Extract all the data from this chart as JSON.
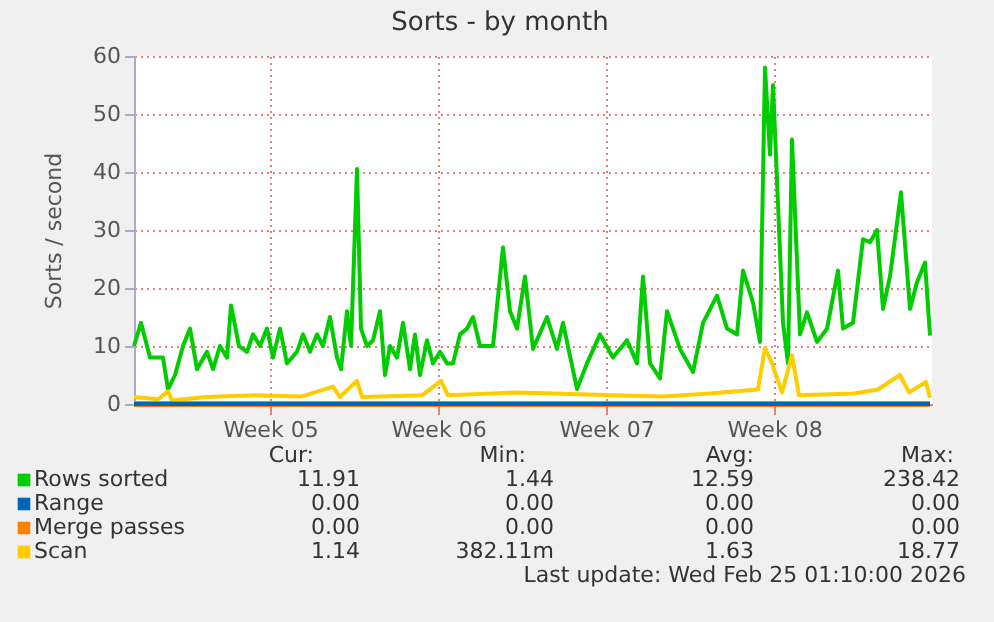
{
  "chart_data": {
    "type": "line",
    "title": "Sorts - by month",
    "ylabel": "Sorts / second",
    "xlim": [
      "2026-01-23T20:00",
      "2026-02-26T02:00"
    ],
    "xticks": [
      {
        "value": "2026-01-29T12:00",
        "label": "Week 05"
      },
      {
        "value": "2026-02-05T12:00",
        "label": "Week 06"
      },
      {
        "value": "2026-02-12T12:00",
        "label": "Week 07"
      },
      {
        "value": "2026-02-19T12:00",
        "label": "Week 08"
      }
    ],
    "ylim": [
      0,
      60
    ],
    "yticks": [
      0,
      10,
      20,
      30,
      40,
      50,
      60
    ],
    "grid": true,
    "legend": "bottom",
    "series": [
      {
        "name": "Rows sorted",
        "color": "#00cc00",
        "x": [
          "2026-01-23T20:00",
          "2026-01-24T03:00",
          "2026-01-24T12:00",
          "2026-01-25T01:00",
          "2026-01-25T06:00",
          "2026-01-25T13:00",
          "2026-01-25T21:00",
          "2026-01-26T04:00",
          "2026-01-26T11:00",
          "2026-01-26T21:00",
          "2026-01-27T03:00",
          "2026-01-27T10:00",
          "2026-01-27T17:00",
          "2026-01-27T21:00",
          "2026-01-28T05:00",
          "2026-01-28T13:00",
          "2026-01-28T19:00",
          "2026-01-29T02:00",
          "2026-01-29T09:00",
          "2026-01-29T15:00",
          "2026-01-29T22:00",
          "2026-01-30T05:00",
          "2026-01-30T15:00",
          "2026-01-30T21:00",
          "2026-01-31T04:00",
          "2026-01-31T11:00",
          "2026-01-31T17:00",
          "2026-02-01T00:00",
          "2026-02-01T07:00",
          "2026-02-01T11:00",
          "2026-02-01T17:00",
          "2026-02-01T21:00",
          "2026-02-02T03:00",
          "2026-02-02T07:00",
          "2026-02-02T13:00",
          "2026-02-02T19:00",
          "2026-02-03T02:00",
          "2026-02-03T07:00",
          "2026-02-03T12:00",
          "2026-02-03T19:00",
          "2026-02-04T01:00",
          "2026-02-04T08:00",
          "2026-02-04T13:00",
          "2026-02-04T18:00",
          "2026-02-05T01:00",
          "2026-02-05T07:00",
          "2026-02-05T14:00",
          "2026-02-05T21:00",
          "2026-02-06T03:00",
          "2026-02-06T10:00",
          "2026-02-06T17:00",
          "2026-02-06T23:00",
          "2026-02-07T06:00",
          "2026-02-07T19:00",
          "2026-02-08T05:00",
          "2026-02-08T12:00",
          "2026-02-08T19:00",
          "2026-02-09T03:00",
          "2026-02-09T11:00",
          "2026-02-10T01:00",
          "2026-02-10T11:00",
          "2026-02-10T17:00",
          "2026-02-11T07:00",
          "2026-02-11T17:00",
          "2026-02-12T06:00",
          "2026-02-12T19:00",
          "2026-02-13T09:00",
          "2026-02-13T19:00",
          "2026-02-14T01:00",
          "2026-02-14T08:00",
          "2026-02-14T18:00",
          "2026-02-15T01:00",
          "2026-02-15T14:00",
          "2026-02-16T03:00",
          "2026-02-16T13:00",
          "2026-02-17T03:00",
          "2026-02-17T13:00",
          "2026-02-17T23:00",
          "2026-02-18T05:00",
          "2026-02-18T15:00",
          "2026-02-18T22:00",
          "2026-02-19T03:00",
          "2026-02-19T08:00",
          "2026-02-19T11:00",
          "2026-02-19T21:00",
          "2026-02-20T02:00",
          "2026-02-20T06:00",
          "2026-02-20T14:00",
          "2026-02-20T21:00",
          "2026-02-21T07:00",
          "2026-02-21T17:00",
          "2026-02-22T04:00",
          "2026-02-22T09:00",
          "2026-02-22T19:00",
          "2026-02-23T05:00",
          "2026-02-23T12:00",
          "2026-02-23T19:00",
          "2026-02-24T01:00",
          "2026-02-24T08:00",
          "2026-02-24T19:00",
          "2026-02-25T04:00",
          "2026-02-25T11:00",
          "2026-02-25T19:00",
          "2026-02-26T00:00"
        ],
        "values": [
          10,
          14,
          8,
          8,
          2.5,
          5,
          10,
          13,
          6,
          9,
          6,
          10,
          8,
          17,
          10,
          9,
          12,
          10,
          13,
          8,
          13,
          7,
          9,
          12,
          9,
          12,
          10,
          15,
          8,
          6,
          16,
          10,
          40.5,
          13,
          10,
          11,
          16,
          5,
          10,
          8,
          14,
          6,
          12,
          5,
          11,
          7,
          9,
          7,
          7,
          12,
          13,
          15,
          10,
          10,
          27,
          16,
          13,
          22,
          9.5,
          15,
          9.5,
          14,
          2.6,
          7,
          12,
          8,
          11,
          7,
          22,
          7,
          4.4,
          16,
          9.5,
          5.5,
          14,
          18.7,
          13,
          12,
          23,
          17.5,
          10.7,
          58,
          43,
          55,
          14,
          7,
          45.6,
          12,
          15.8,
          10.7,
          13,
          23,
          13,
          14,
          28.4,
          27.9,
          30,
          16.4,
          22,
          36.5,
          16.4,
          21,
          24.4,
          11.8
        ]
      },
      {
        "name": "Range",
        "color": "#0066b3",
        "x": [
          "2026-01-23T20:00",
          "2026-02-26T00:00"
        ],
        "values": [
          0,
          0
        ]
      },
      {
        "name": "Merge passes",
        "color": "#ff8000",
        "x": [
          "2026-01-23T20:00",
          "2026-02-26T00:00"
        ],
        "values": [
          0,
          0
        ]
      },
      {
        "name": "Scan",
        "color": "#ffcc00",
        "x": [
          "2026-01-23T20:00",
          "2026-01-24T20:00",
          "2026-01-25T06:00",
          "2026-01-25T10:00",
          "2026-01-26T20:00",
          "2026-01-28T20:00",
          "2026-01-30T20:00",
          "2026-02-01T03:00",
          "2026-02-01T10:00",
          "2026-02-02T03:00",
          "2026-02-02T08:00",
          "2026-02-04T20:00",
          "2026-02-05T15:00",
          "2026-02-05T22:00",
          "2026-02-08T20:00",
          "2026-02-12T20:00",
          "2026-02-14T20:00",
          "2026-02-16T20:00",
          "2026-02-18T20:00",
          "2026-02-19T03:00",
          "2026-02-19T10:00",
          "2026-02-19T20:00",
          "2026-02-20T06:00",
          "2026-02-20T13:00",
          "2026-02-22T20:00",
          "2026-02-23T20:00",
          "2026-02-24T18:00",
          "2026-02-25T03:00",
          "2026-02-25T20:00",
          "2026-02-26T00:00"
        ],
        "values": [
          1.2,
          0.8,
          2.2,
          0.6,
          1.2,
          1.5,
          1.3,
          3,
          1.2,
          4,
          1.2,
          1.5,
          4,
          1.5,
          2,
          1.5,
          1.3,
          1.8,
          2.5,
          9.7,
          7,
          2,
          8.4,
          1.5,
          1.8,
          2.5,
          5,
          2,
          3.8,
          1.1
        ]
      }
    ],
    "annotations": [
      "Cur:",
      "Min:",
      "Avg:",
      "Max:",
      "11.91",
      "1.44",
      "12.59",
      "238.42",
      "0.00",
      "0.00",
      "0.00",
      "0.00",
      "0.00",
      "0.00",
      "0.00",
      "0.00",
      "1.14",
      "382.11m",
      "1.63",
      "18.77",
      "Last update: Wed Feb 25 01:10:00 2026"
    ]
  }
}
